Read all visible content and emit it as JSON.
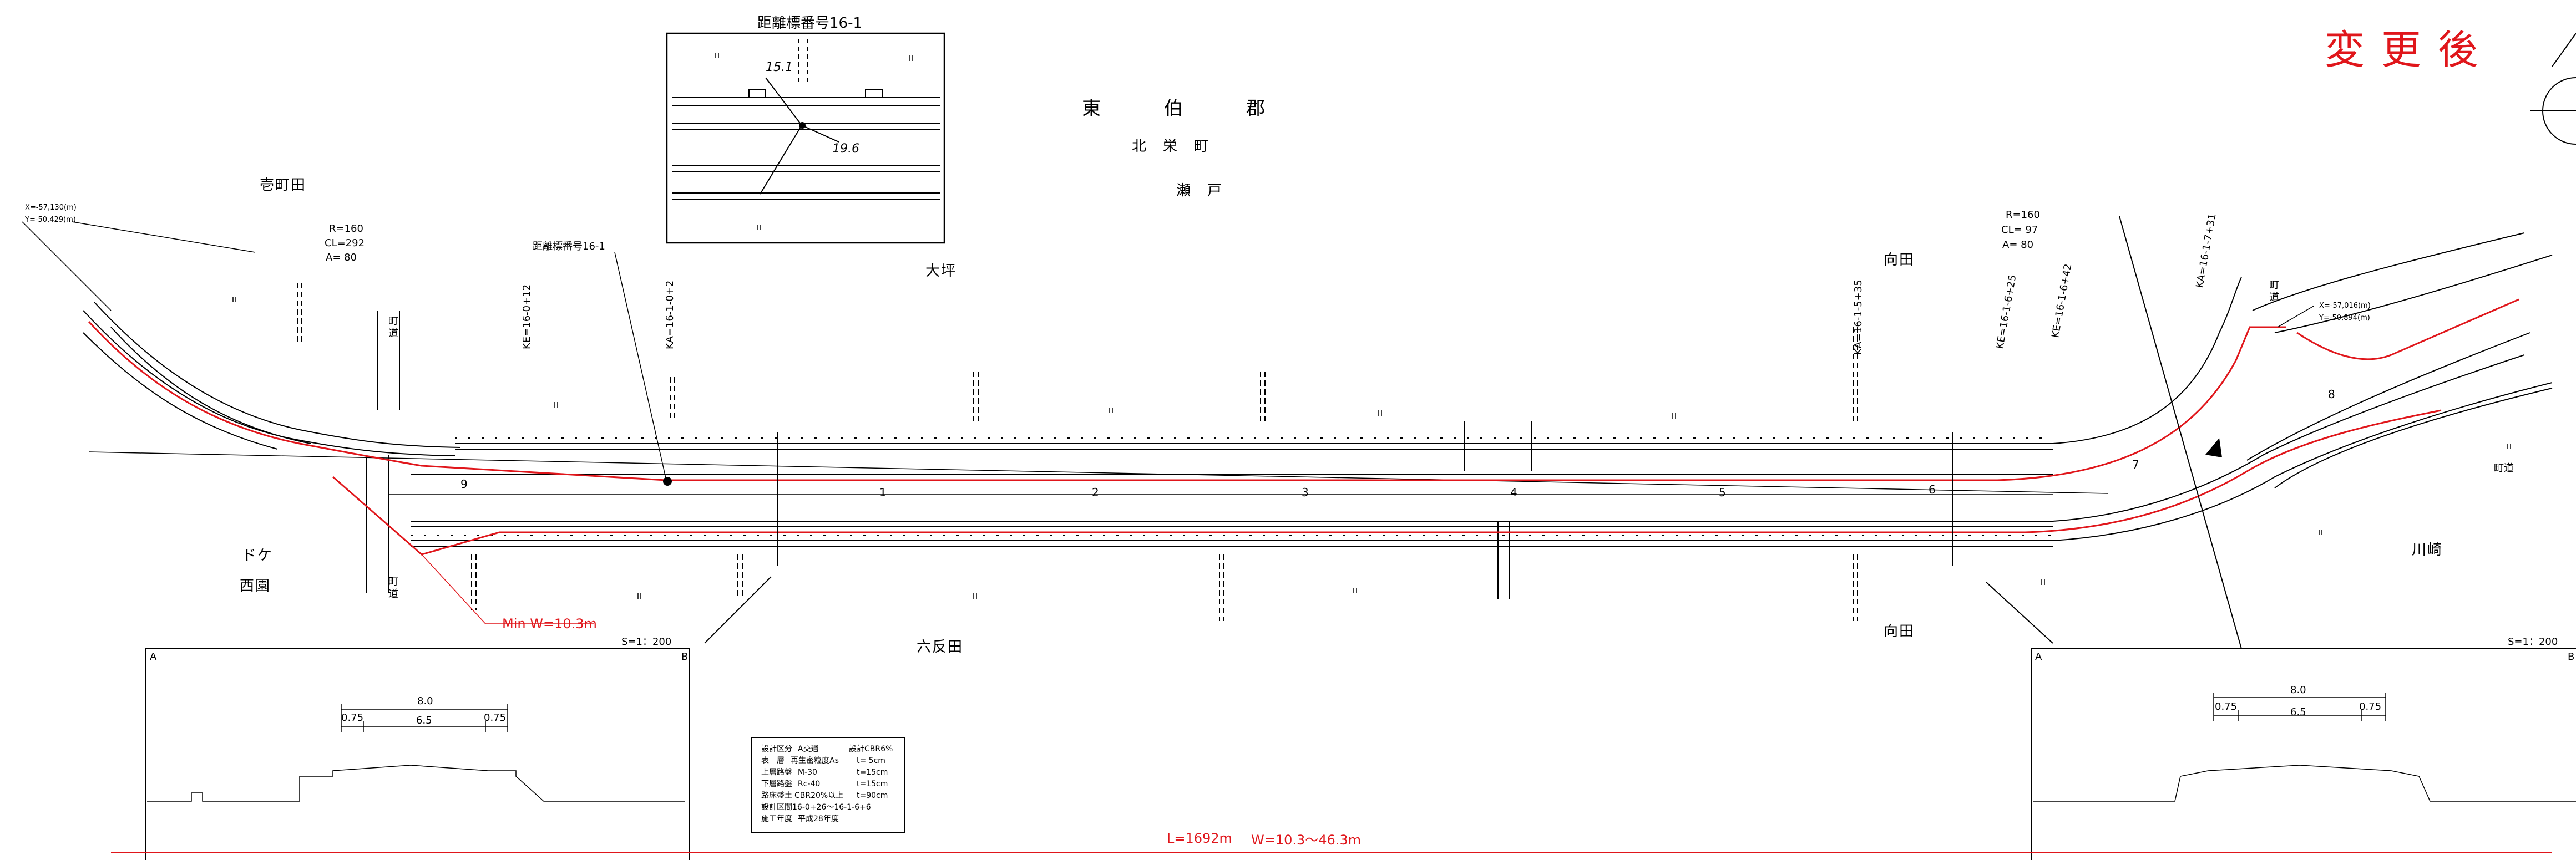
{
  "status_label": "変更後",
  "scale_label": "S=1：200",
  "summary": {
    "length": "L=1692m",
    "width": "W=10.3～46.3m"
  },
  "min_width_label": "Min  W=10.3m",
  "place_names": {
    "higashi_haku_gun": "東　伯　郡",
    "hokuei_cho": "北　栄　町",
    "seto": "瀬　戸",
    "ichimachida": "壱町田",
    "oasa": "大坪",
    "mukaida_top": "向田",
    "mukaida_bottom": "向田",
    "dokke": "ドケ",
    "nishizono": "西園",
    "rokutanda": "六反田",
    "kawasaki": "川崎"
  },
  "inset": {
    "title": "距離標番号16-1",
    "label_a": "15.1",
    "label_b": "19.6"
  },
  "distance_marker_label": "距離標番号16-1",
  "town_roads": {
    "a": "町\n道",
    "b": "町\n道",
    "c": "町\n道",
    "d": "町道"
  },
  "curves": {
    "left": {
      "r": "R=160",
      "cl": "CL=292",
      "a": "A= 80"
    },
    "right": {
      "r": "R=160",
      "cl": "CL= 97",
      "a": "A= 80"
    }
  },
  "coords": {
    "left": {
      "x": "X=-57,130(m)",
      "y": "Y=-50,429(m)"
    },
    "right": {
      "x": "X=-57,016(m)",
      "y": "Y=-50,894(m)"
    }
  },
  "station_labels": [
    "KE=16-0+12",
    "KA=16-1-0+2",
    "KA=16-1-5+35",
    "KE=16-1-6+25",
    "KE=16-1-6+42",
    "KA=16-1-7+31"
  ],
  "chainage_numbers": [
    "9",
    "1",
    "2",
    "3",
    "4",
    "5",
    "6",
    "7",
    "8"
  ],
  "sections": {
    "left": {
      "corner_a": "A",
      "corner_b": "B",
      "total": "8.0",
      "side_left": "0.75",
      "middle": "6.5",
      "side_right": "0.75"
    },
    "right": {
      "corner_a": "A",
      "corner_b": "B",
      "total": "8.0",
      "side_left": "0.75",
      "middle": "6.5",
      "side_right": "0.75"
    }
  },
  "spec_table": [
    [
      "設計区分",
      "A交通",
      "設計CBR6%"
    ],
    [
      "表　層",
      "再生密粒度As",
      "t= 5cm"
    ],
    [
      "上層路盤",
      "M-30",
      "t=15cm"
    ],
    [
      "下層路盤",
      "Rc-40",
      "t=15cm"
    ],
    [
      "路床盛土",
      "CBR20%以上",
      "t=90cm"
    ],
    [
      "設計区間",
      "16-0+26～16-1-6+6",
      ""
    ],
    [
      "施工年度",
      "平成28年度",
      ""
    ]
  ],
  "colors": {
    "accent_red": "#e0161b",
    "ink": "#000000",
    "paper": "#ffffff"
  }
}
